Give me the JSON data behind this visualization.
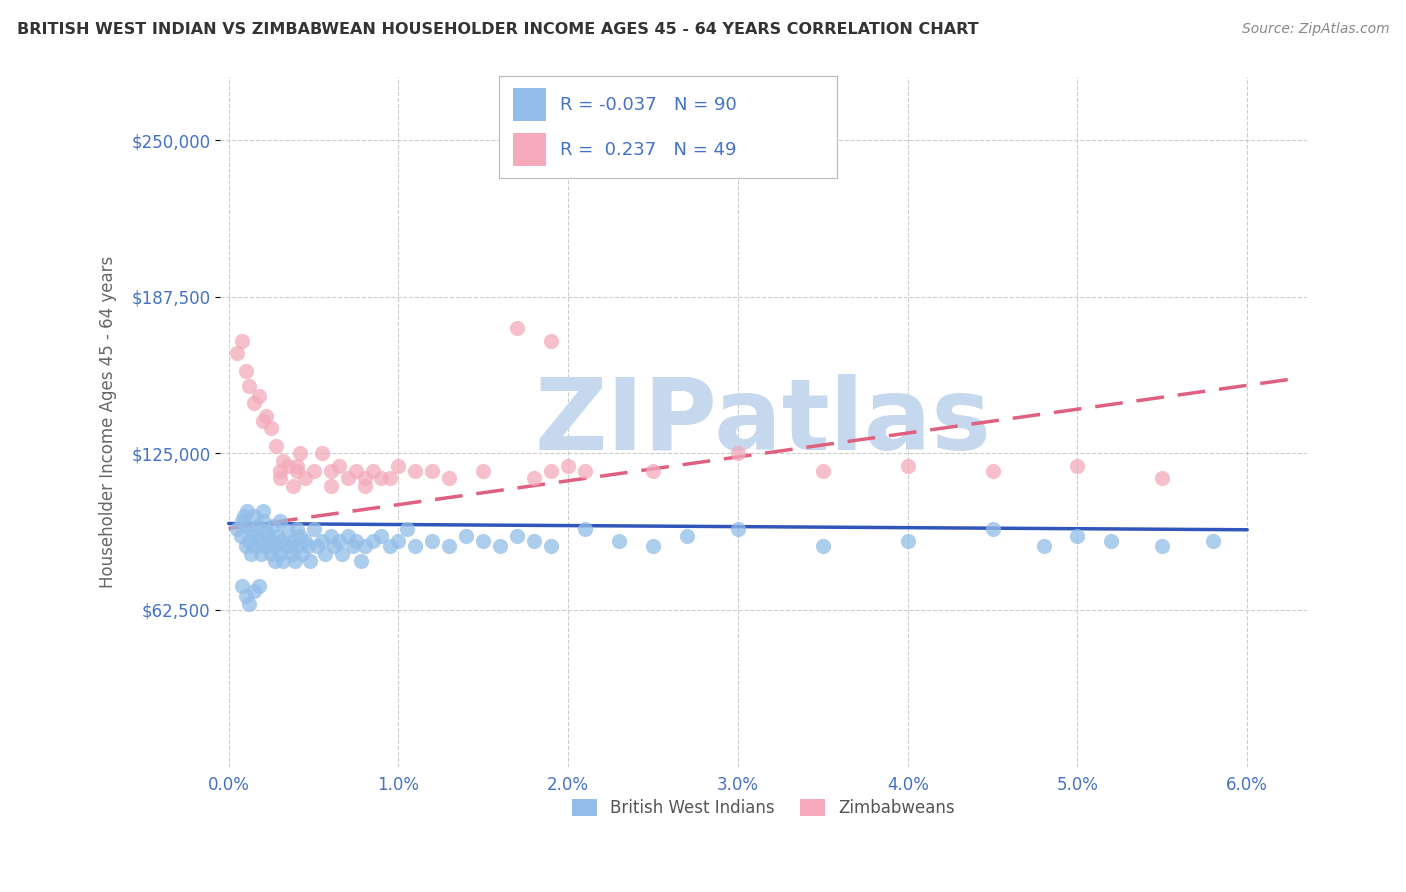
{
  "title": "BRITISH WEST INDIAN VS ZIMBABWEAN HOUSEHOLDER INCOME AGES 45 - 64 YEARS CORRELATION CHART",
  "source": "Source: ZipAtlas.com",
  "xlabel_ticks": [
    "0.0%",
    "1.0%",
    "2.0%",
    "3.0%",
    "4.0%",
    "5.0%",
    "6.0%"
  ],
  "xlabel_values": [
    0.0,
    1.0,
    2.0,
    3.0,
    4.0,
    5.0,
    6.0
  ],
  "ylabel": "Householder Income Ages 45 - 64 years",
  "ytick_labels": [
    "$62,500",
    "$125,000",
    "$187,500",
    "$250,000"
  ],
  "ytick_values": [
    62500,
    125000,
    187500,
    250000
  ],
  "ymin": 0,
  "ymax": 275000,
  "xmin": -0.05,
  "xmax": 6.35,
  "r_blue": -0.037,
  "n_blue": 90,
  "r_pink": 0.237,
  "n_pink": 49,
  "blue_color": "#92BDE8",
  "pink_color": "#F4AABB",
  "blue_line_color": "#3055BB",
  "pink_line_color": "#E06080",
  "title_color": "#333333",
  "axis_label_color": "#4472C4",
  "watermark": "ZIPatlas",
  "watermark_color": "#C5D8EE",
  "background_color": "#FFFFFF",
  "blue_scatter_x": [
    0.05,
    0.07,
    0.08,
    0.09,
    0.1,
    0.1,
    0.11,
    0.12,
    0.13,
    0.14,
    0.15,
    0.15,
    0.16,
    0.17,
    0.18,
    0.19,
    0.2,
    0.2,
    0.21,
    0.22,
    0.23,
    0.24,
    0.25,
    0.25,
    0.26,
    0.27,
    0.28,
    0.29,
    0.3,
    0.3,
    0.31,
    0.32,
    0.33,
    0.35,
    0.36,
    0.37,
    0.38,
    0.39,
    0.4,
    0.41,
    0.42,
    0.43,
    0.45,
    0.47,
    0.48,
    0.5,
    0.52,
    0.55,
    0.57,
    0.6,
    0.62,
    0.65,
    0.67,
    0.7,
    0.73,
    0.75,
    0.78,
    0.8,
    0.85,
    0.9,
    0.95,
    1.0,
    1.05,
    1.1,
    1.2,
    1.3,
    1.4,
    1.5,
    1.6,
    1.7,
    1.8,
    1.9,
    2.1,
    2.3,
    2.5,
    2.7,
    3.0,
    3.5,
    4.0,
    4.5,
    4.8,
    5.0,
    5.2,
    5.5,
    5.8,
    0.08,
    0.1,
    0.12,
    0.15,
    0.18
  ],
  "blue_scatter_y": [
    95000,
    92000,
    98000,
    100000,
    96000,
    88000,
    102000,
    90000,
    85000,
    94000,
    100000,
    88000,
    92000,
    96000,
    90000,
    85000,
    98000,
    102000,
    88000,
    94000,
    92000,
    88000,
    85000,
    90000,
    96000,
    82000,
    88000,
    92000,
    98000,
    85000,
    90000,
    82000,
    88000,
    94000,
    88000,
    85000,
    90000,
    82000,
    95000,
    88000,
    92000,
    85000,
    90000,
    88000,
    82000,
    95000,
    88000,
    90000,
    85000,
    92000,
    88000,
    90000,
    85000,
    92000,
    88000,
    90000,
    82000,
    88000,
    90000,
    92000,
    88000,
    90000,
    95000,
    88000,
    90000,
    88000,
    92000,
    90000,
    88000,
    92000,
    90000,
    88000,
    95000,
    90000,
    88000,
    92000,
    95000,
    88000,
    90000,
    95000,
    88000,
    92000,
    90000,
    88000,
    90000,
    72000,
    68000,
    65000,
    70000,
    72000
  ],
  "pink_scatter_x": [
    0.05,
    0.08,
    0.1,
    0.12,
    0.15,
    0.18,
    0.2,
    0.22,
    0.25,
    0.28,
    0.3,
    0.32,
    0.35,
    0.38,
    0.4,
    0.42,
    0.45,
    0.5,
    0.55,
    0.6,
    0.65,
    0.7,
    0.75,
    0.8,
    0.85,
    0.9,
    0.95,
    1.0,
    1.1,
    1.2,
    1.3,
    1.5,
    1.7,
    1.9,
    2.1,
    2.5,
    3.0,
    3.5,
    4.0,
    4.5,
    5.0,
    5.5,
    0.3,
    0.4,
    0.6,
    0.8,
    1.8,
    1.9,
    2.0
  ],
  "pink_scatter_y": [
    165000,
    170000,
    158000,
    152000,
    145000,
    148000,
    138000,
    140000,
    135000,
    128000,
    118000,
    122000,
    120000,
    112000,
    118000,
    125000,
    115000,
    118000,
    125000,
    112000,
    120000,
    115000,
    118000,
    112000,
    118000,
    115000,
    115000,
    120000,
    118000,
    118000,
    115000,
    118000,
    175000,
    170000,
    118000,
    118000,
    125000,
    118000,
    120000,
    118000,
    120000,
    115000,
    115000,
    120000,
    118000,
    115000,
    115000,
    118000,
    120000
  ]
}
